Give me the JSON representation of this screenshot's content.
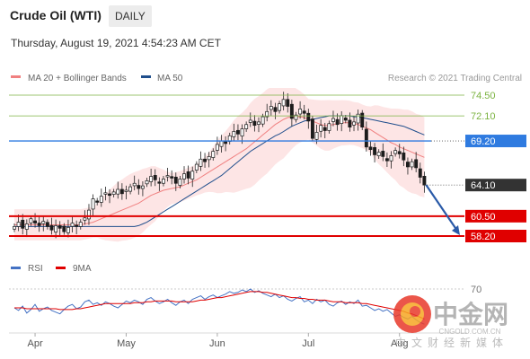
{
  "header": {
    "title": "Crude Oil (WTI)",
    "timeframe": "DAILY"
  },
  "timestamp": "Thursday, August 19, 2021 4:54:23 AM CET",
  "legend": {
    "items": [
      {
        "label": "MA 20 + Bollinger Bands",
        "color": "#f08080"
      },
      {
        "label": "MA 50",
        "color": "#1f4e8c"
      }
    ],
    "credit": "Research © 2021 Trading Central"
  },
  "rsi_legend": {
    "items": [
      {
        "label": "RSI",
        "color": "#4472c4"
      },
      {
        "label": "9MA",
        "color": "#e00000"
      }
    ]
  },
  "watermark": {
    "name": "中金网",
    "url": "CNGOLD.COM.CN",
    "tagline": "中文财经新媒体"
  },
  "chart_data": [
    {
      "type": "candlestick",
      "x_labels": [
        "Apr",
        "May",
        "Jun",
        "Jul",
        "Aug"
      ],
      "ylim": [
        57.5,
        75.5
      ],
      "levels": [
        {
          "label": "74.50",
          "value": 74.5,
          "kind": "resistance",
          "color": "#7cb342"
        },
        {
          "label": "72.10",
          "value": 72.1,
          "kind": "resistance",
          "color": "#7cb342"
        },
        {
          "label": "69.20",
          "value": 69.2,
          "kind": "pivot",
          "color": "#2f7be0"
        },
        {
          "label": "64.10",
          "value": 64.1,
          "kind": "last",
          "color": "#333333"
        },
        {
          "label": "60.50",
          "value": 60.5,
          "kind": "support",
          "color": "#e00000"
        },
        {
          "label": "58.20",
          "value": 58.2,
          "kind": "support",
          "color": "#e00000"
        }
      ],
      "forecast_arrow": {
        "from": 64.1,
        "to": 58.3,
        "color": "#2a5aa8"
      },
      "closes": [
        59.3,
        59.8,
        59.1,
        59.6,
        60.2,
        59.7,
        59.4,
        59.9,
        59.3,
        58.9,
        59.4,
        59.1,
        58.7,
        59.2,
        59.7,
        59.3,
        59.8,
        60.3,
        61.2,
        62.5,
        62.1,
        62.8,
        63.2,
        62.9,
        63.3,
        63.6,
        63.1,
        63.5,
        63.9,
        64.3,
        63.7,
        64.0,
        64.6,
        65.1,
        64.7,
        64.3,
        64.8,
        65.2,
        64.9,
        64.3,
        64.8,
        65.4,
        64.9,
        65.7,
        66.5,
        67.1,
        66.8,
        67.4,
        68.0,
        68.8,
        69.2,
        68.9,
        69.8,
        70.3,
        70.0,
        70.6,
        71.1,
        71.6,
        71.0,
        71.4,
        72.0,
        72.6,
        73.2,
        72.6,
        73.5,
        74.0,
        73.2,
        71.8,
        72.2,
        72.9,
        72.4,
        71.5,
        69.5,
        70.2,
        71.0,
        70.4,
        71.2,
        71.8,
        71.1,
        72.1,
        71.6,
        70.8,
        71.4,
        72.3,
        70.8,
        68.5,
        68.2,
        67.6,
        67.9,
        67.4,
        66.9,
        67.5,
        68.1,
        67.7,
        67.0,
        66.2,
        66.8,
        66.1,
        65.0,
        64.1
      ],
      "ma20": [
        59.5,
        59.5,
        59.5,
        59.5,
        59.5,
        59.5,
        59.5,
        59.5,
        59.5,
        59.5,
        59.5,
        59.5,
        59.5,
        59.5,
        59.5,
        59.5,
        59.5,
        59.6,
        59.7,
        59.8,
        60.0,
        60.2,
        60.4,
        60.6,
        60.8,
        61.0,
        61.2,
        61.4,
        61.6,
        61.8,
        62.0,
        62.3,
        62.6,
        62.9,
        63.1,
        63.3,
        63.5,
        63.6,
        63.7,
        63.8,
        63.9,
        64.1,
        64.3,
        64.5,
        64.7,
        65.0,
        65.3,
        65.6,
        65.9,
        66.2,
        66.5,
        66.8,
        67.1,
        67.4,
        67.7,
        68.0,
        68.3,
        68.7,
        69.1,
        69.5,
        69.9,
        70.3,
        70.7,
        71.1,
        71.4,
        71.7,
        71.9,
        72.0,
        72.0,
        72.0,
        71.9,
        71.7,
        71.5,
        71.3,
        71.1,
        71.0,
        71.0,
        71.1,
        71.2,
        71.3,
        71.3,
        71.3,
        71.2,
        71.1,
        70.9,
        70.7,
        70.5,
        70.2,
        69.9,
        69.6,
        69.3,
        69.0,
        68.8,
        68.5,
        68.3,
        68.1,
        67.9,
        67.7,
        67.5,
        67.3
      ],
      "ma50": [
        59.3,
        59.3,
        59.3,
        59.3,
        59.3,
        59.3,
        59.3,
        59.3,
        59.3,
        59.3,
        59.3,
        59.3,
        59.3,
        59.3,
        59.3,
        59.3,
        59.3,
        59.3,
        59.3,
        59.3,
        59.3,
        59.3,
        59.3,
        59.3,
        59.3,
        59.3,
        59.3,
        59.3,
        59.3,
        59.3,
        59.4,
        59.6,
        59.8,
        60.1,
        60.4,
        60.7,
        61.0,
        61.3,
        61.6,
        61.9,
        62.2,
        62.5,
        62.8,
        63.1,
        63.4,
        63.7,
        64.0,
        64.3,
        64.6,
        64.9,
        65.2,
        65.6,
        66.0,
        66.4,
        66.8,
        67.2,
        67.6,
        68.0,
        68.3,
        68.6,
        68.9,
        69.2,
        69.5,
        69.8,
        70.0,
        70.3,
        70.6,
        70.9,
        71.1,
        71.3,
        71.5,
        71.6,
        71.7,
        71.8,
        71.9,
        72.0,
        72.1,
        72.1,
        72.1,
        72.1,
        72.1,
        72.1,
        72.0,
        72.0,
        71.9,
        71.8,
        71.7,
        71.6,
        71.5,
        71.4,
        71.3,
        71.2,
        71.1,
        71.0,
        70.9,
        70.7,
        70.5,
        70.3,
        70.1,
        69.9
      ]
    },
    {
      "type": "line",
      "x_labels": [
        "Apr",
        "May",
        "Jun",
        "Jul",
        "Aug"
      ],
      "ylim": [
        25,
        80
      ],
      "ticks": [
        70
      ],
      "series": [
        {
          "name": "RSI",
          "values": [
            48,
            45,
            50,
            42,
            46,
            52,
            44,
            47,
            49,
            45,
            43,
            41,
            46,
            50,
            52,
            47,
            49,
            55,
            57,
            52,
            54,
            51,
            55,
            53,
            50,
            48,
            52,
            56,
            54,
            57,
            55,
            52,
            58,
            60,
            56,
            53,
            55,
            58,
            54,
            51,
            55,
            57,
            53,
            58,
            60,
            62,
            58,
            61,
            63,
            60,
            62,
            64,
            67,
            65,
            66,
            69,
            67,
            70,
            66,
            68,
            65,
            63,
            61,
            64,
            60,
            62,
            58,
            56,
            59,
            61,
            55,
            57,
            53,
            58,
            55,
            57,
            52,
            50,
            54,
            56,
            52,
            55,
            53,
            57,
            50,
            51,
            48,
            45,
            47,
            44,
            46,
            42,
            38,
            40,
            37,
            35,
            38,
            34,
            31,
            29
          ],
          "color": "#4472c4"
        },
        {
          "name": "9MA",
          "values": [
            48,
            48,
            48,
            47,
            47,
            47,
            47,
            47,
            47,
            47,
            47,
            46,
            46,
            46,
            46,
            47,
            47,
            48,
            49,
            50,
            51,
            52,
            53,
            53,
            53,
            53,
            53,
            53,
            53,
            54,
            54,
            54,
            55,
            55,
            56,
            56,
            56,
            56,
            56,
            55,
            55,
            55,
            55,
            55,
            56,
            57,
            57,
            58,
            59,
            60,
            60,
            61,
            62,
            63,
            64,
            65,
            66,
            67,
            67,
            67,
            66,
            66,
            65,
            64,
            63,
            62,
            61,
            60,
            60,
            59,
            59,
            58,
            58,
            57,
            57,
            57,
            56,
            55,
            55,
            55,
            54,
            54,
            54,
            54,
            53,
            53,
            52,
            51,
            50,
            49,
            48,
            47,
            46,
            45,
            44,
            42,
            41,
            39,
            37,
            35
          ],
          "color": "#e00000"
        }
      ]
    }
  ]
}
